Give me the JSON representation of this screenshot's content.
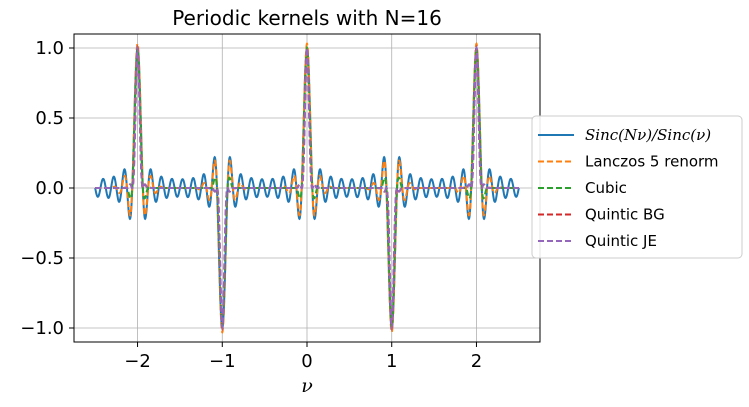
{
  "chart_data": {
    "type": "line",
    "title": "Periodic kernels with N=16",
    "xlabel": "ν",
    "ylabel": "",
    "xlim": [
      -2.75,
      2.75
    ],
    "ylim": [
      -1.1,
      1.1
    ],
    "x_ticks": [
      -2,
      -1,
      0,
      1,
      2
    ],
    "x_tick_labels": [
      "−2",
      "−1",
      "0",
      "1",
      "2"
    ],
    "y_ticks": [
      -1.0,
      -0.5,
      0.0,
      0.5,
      1.0
    ],
    "y_tick_labels": [
      "−1.0",
      "−0.5",
      "0.0",
      "0.5",
      "1.0"
    ],
    "grid": true,
    "legend_position": "center-right, outside plot",
    "N": 16,
    "x_range": [
      -2.5,
      2.5
    ],
    "series": [
      {
        "name": "Sinc(Nν)/Sinc(ν)",
        "style": "solid",
        "color": "#1f77b4",
        "kernel": "dirichlet"
      },
      {
        "name": "Lanczos 5 renorm",
        "style": "dashed",
        "color": "#ff7f0e",
        "kernel": "lanczos5"
      },
      {
        "name": "Cubic",
        "style": "dashed",
        "color": "#2ca02c",
        "kernel": "cubic"
      },
      {
        "name": "Quintic BG",
        "style": "dashed",
        "color": "#d62728",
        "kernel": "quintic"
      },
      {
        "name": "Quintic JE",
        "style": "dashed",
        "color": "#9467bd",
        "kernel": "quintic"
      }
    ]
  }
}
